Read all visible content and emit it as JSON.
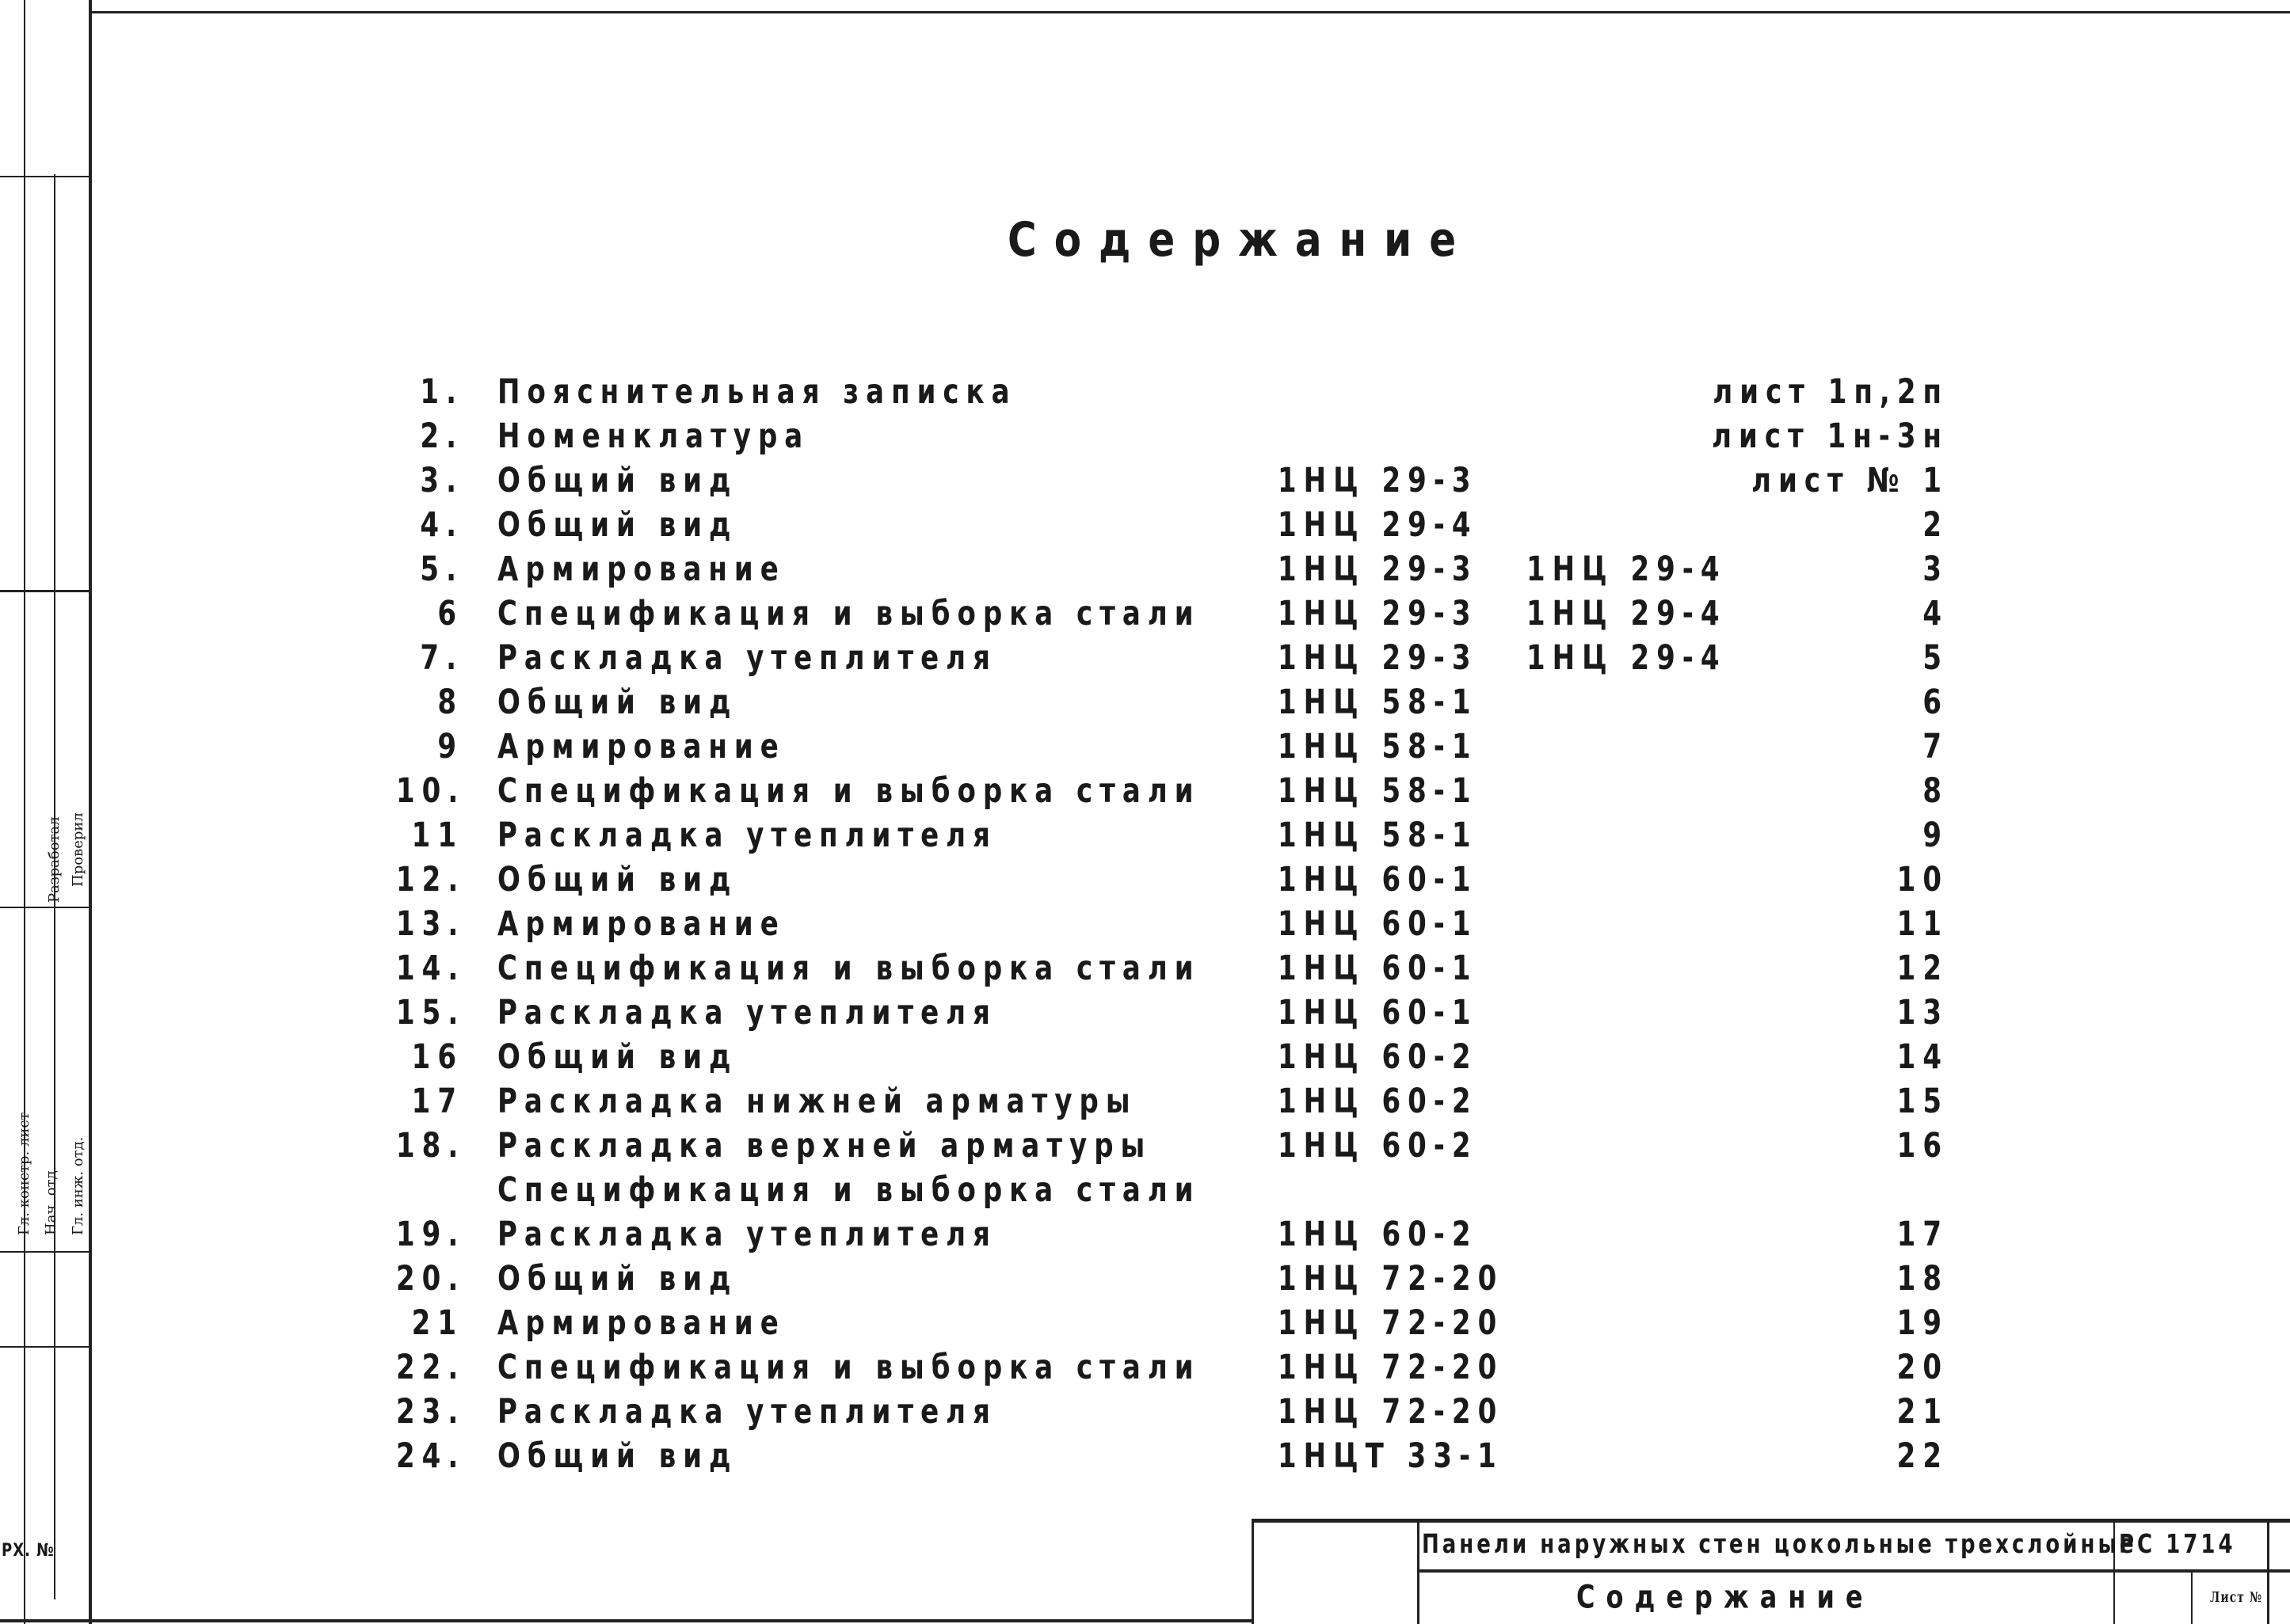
{
  "title": "Содержание",
  "rows": [
    {
      "n": "1.",
      "name": "Пояснительная записка",
      "code1": "",
      "code2": "",
      "sheet": "лист 1п,2п"
    },
    {
      "n": "2.",
      "name": "Номенклатура",
      "code1": "",
      "code2": "",
      "sheet": "лист 1н-3н"
    },
    {
      "n": "3.",
      "name": "Общий вид",
      "code1": "1НЦ 29-3",
      "code2": "",
      "sheet": "лист № 1"
    },
    {
      "n": "4.",
      "name": "Общий вид",
      "code1": "1НЦ 29-4",
      "code2": "",
      "sheet": "2"
    },
    {
      "n": "5.",
      "name": "Армирование",
      "code1": "1НЦ 29-3",
      "code2": "1НЦ 29-4",
      "sheet": "3"
    },
    {
      "n": "6",
      "name": "Спецификация и выборка стали",
      "code1": "1НЦ 29-3",
      "code2": "1НЦ 29-4",
      "sheet": "4"
    },
    {
      "n": "7.",
      "name": "Раскладка утеплителя",
      "code1": "1НЦ 29-3",
      "code2": "1НЦ 29-4",
      "sheet": "5"
    },
    {
      "n": "8",
      "name": "Общий вид",
      "code1": "1НЦ 58-1",
      "code2": "",
      "sheet": "6"
    },
    {
      "n": "9",
      "name": "Армирование",
      "code1": "1НЦ 58-1",
      "code2": "",
      "sheet": "7"
    },
    {
      "n": "10.",
      "name": "Спецификация и выборка стали",
      "code1": "1НЦ 58-1",
      "code2": "",
      "sheet": "8"
    },
    {
      "n": "11",
      "name": "Раскладка утеплителя",
      "code1": "1НЦ 58-1",
      "code2": "",
      "sheet": "9"
    },
    {
      "n": "12.",
      "name": "Общий вид",
      "code1": "1НЦ 60-1",
      "code2": "",
      "sheet": "10"
    },
    {
      "n": "13.",
      "name": "Армирование",
      "code1": "1НЦ 60-1",
      "code2": "",
      "sheet": "11"
    },
    {
      "n": "14.",
      "name": "Спецификация и выборка стали",
      "code1": "1НЦ 60-1",
      "code2": "",
      "sheet": "12"
    },
    {
      "n": "15.",
      "name": "Раскладка утеплителя",
      "code1": "1НЦ 60-1",
      "code2": "",
      "sheet": "13"
    },
    {
      "n": "16",
      "name": "Общий вид",
      "code1": "1НЦ 60-2",
      "code2": "",
      "sheet": "14"
    },
    {
      "n": "17",
      "name": "Раскладка нижней арматуры",
      "code1": "1НЦ 60-2",
      "code2": "",
      "sheet": "15"
    },
    {
      "n": "18.",
      "name": "Раскладка верхней арматуры",
      "code1": "1НЦ 60-2",
      "code2": "",
      "sheet": "16"
    },
    {
      "n": "",
      "name": "Спецификация и выборка стали",
      "code1": "",
      "code2": "",
      "sheet": ""
    },
    {
      "n": "19.",
      "name": "Раскладка утеплителя",
      "code1": "1НЦ 60-2",
      "code2": "",
      "sheet": "17"
    },
    {
      "n": "20.",
      "name": "Общий вид",
      "code1": "1НЦ 72-20",
      "code2": "",
      "sheet": "18"
    },
    {
      "n": "21",
      "name": "Армирование",
      "code1": "1НЦ 72-20",
      "code2": "",
      "sheet": "19"
    },
    {
      "n": "22.",
      "name": "Спецификация и выборка стали",
      "code1": "1НЦ 72-20",
      "code2": "",
      "sheet": "20"
    },
    {
      "n": "23.",
      "name": "Раскладка утеплителя",
      "code1": "1НЦ 72-20",
      "code2": "",
      "sheet": "21"
    },
    {
      "n": "24.",
      "name": "Общий вид",
      "code1": "1НЦТ 33-1",
      "code2": "",
      "sheet": "22"
    }
  ],
  "title_block": {
    "project": "Панели наружных стен цокольные трехслойные",
    "series": "РС 1714",
    "sheet_title": "Содержание",
    "sheet_label": "Лист №"
  },
  "margin": {
    "developed": "Разработал",
    "checked": "Проверил",
    "chief": "Гл. констр. лист",
    "head": "Нач. отд.",
    "engineer": "Гл. инж. отд.",
    "archive": "РХ. №"
  }
}
